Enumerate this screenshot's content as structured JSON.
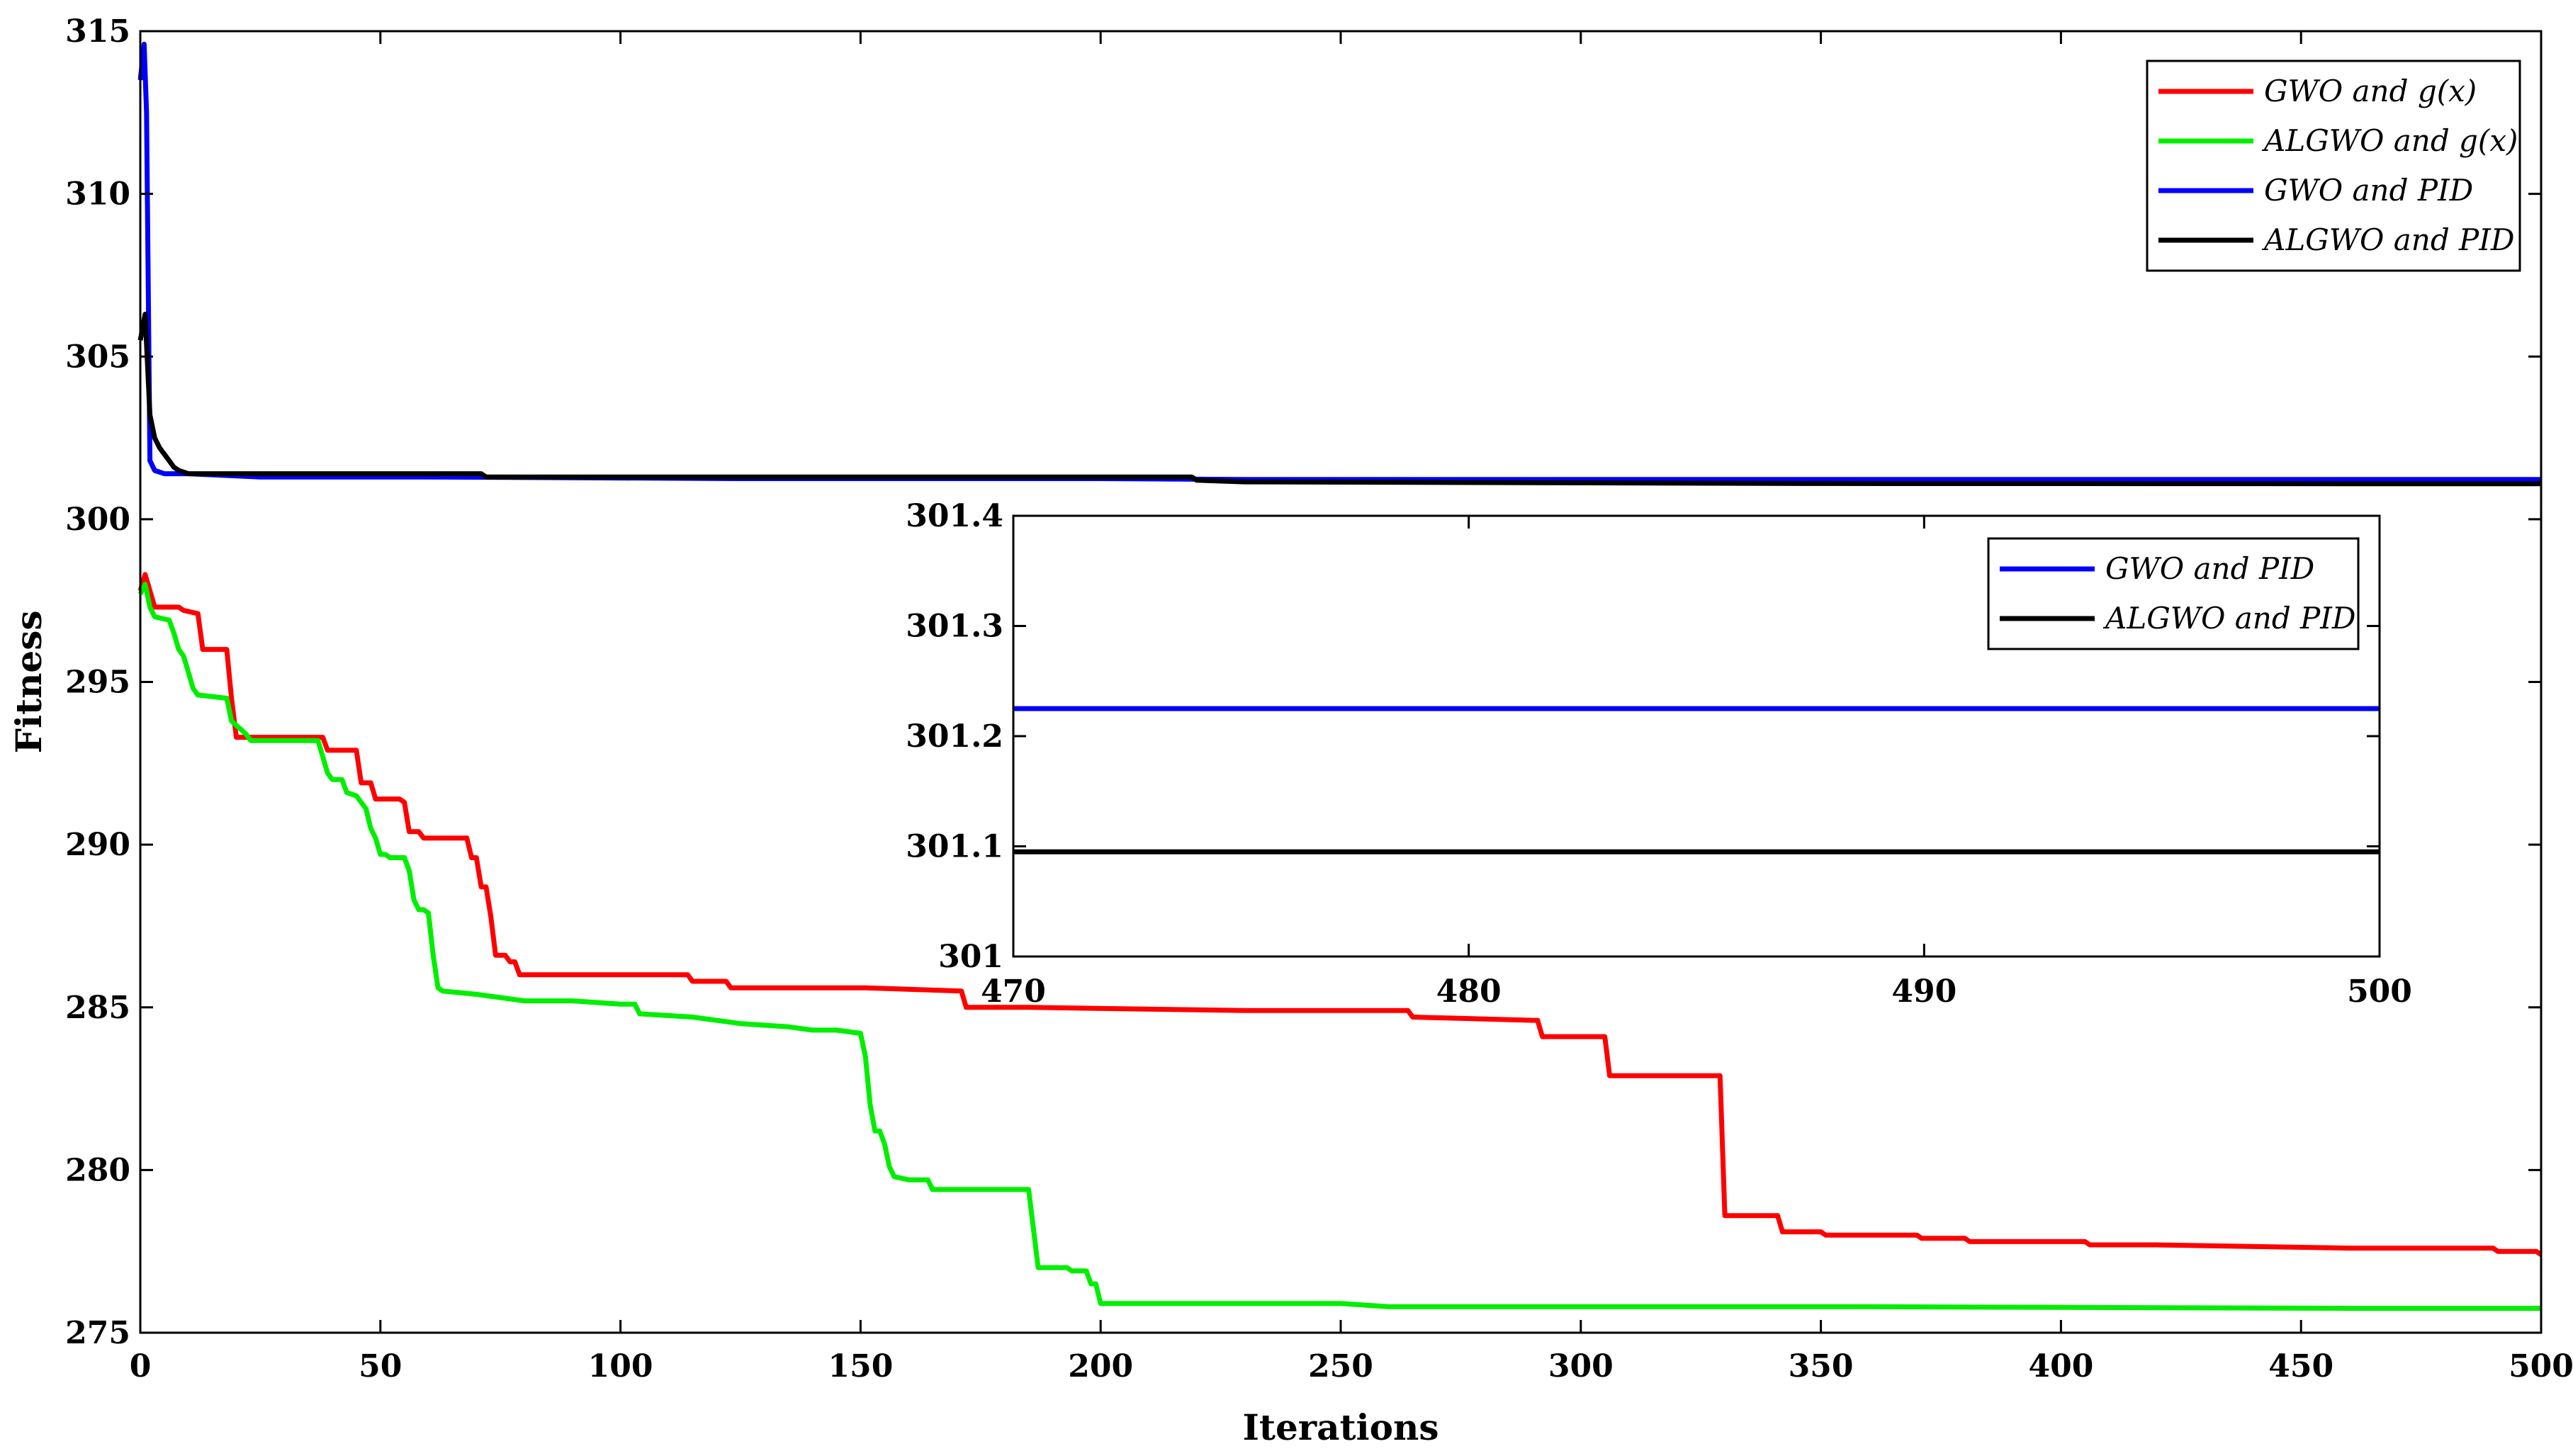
{
  "chart_data": [
    {
      "type": "line",
      "title": "",
      "xlabel": "Iterations",
      "ylabel": "Fitness",
      "xlim": [
        0,
        500
      ],
      "ylim": [
        275,
        315
      ],
      "xticks": [
        0,
        50,
        100,
        150,
        200,
        250,
        300,
        350,
        400,
        450,
        500
      ],
      "yticks": [
        275,
        280,
        285,
        290,
        295,
        300,
        305,
        310,
        315
      ],
      "grid": false,
      "legend_position": "top-right",
      "series": [
        {
          "name": "GWO and g(x)",
          "color": "#ff0000",
          "x": [
            0,
            1,
            2,
            3,
            8,
            9,
            12,
            13,
            18,
            19,
            20,
            38,
            39,
            45,
            46,
            48,
            49,
            54,
            55,
            56,
            58,
            59,
            60,
            61,
            62,
            68,
            69,
            70,
            71,
            72,
            73,
            74,
            75,
            76,
            77,
            78,
            79,
            80,
            90,
            114,
            115,
            122,
            123,
            145,
            150,
            151,
            171,
            172,
            185,
            230,
            250,
            264,
            265,
            290,
            291,
            292,
            293,
            305,
            306,
            310,
            311,
            329,
            330,
            341,
            342,
            350,
            351,
            370,
            371,
            380,
            381,
            405,
            406,
            420,
            460,
            480,
            490,
            491,
            498,
            499,
            500
          ],
          "y": [
            297.8,
            298.3,
            297.8,
            297.3,
            297.3,
            297.2,
            297.1,
            296.0,
            296.0,
            294.5,
            293.3,
            293.3,
            292.9,
            292.9,
            291.9,
            291.9,
            291.4,
            291.4,
            291.3,
            290.4,
            290.4,
            290.2,
            290.2,
            290.2,
            290.2,
            290.2,
            289.6,
            289.6,
            288.7,
            288.7,
            287.8,
            286.6,
            286.6,
            286.6,
            286.4,
            286.4,
            286.0,
            286.0,
            286.0,
            286.0,
            285.8,
            285.8,
            285.6,
            285.6,
            285.6,
            285.6,
            285.5,
            285.0,
            285.0,
            284.9,
            284.9,
            284.9,
            284.7,
            284.6,
            284.6,
            284.1,
            284.1,
            284.1,
            282.9,
            282.9,
            282.9,
            282.9,
            278.6,
            278.6,
            278.1,
            278.1,
            278.0,
            278.0,
            277.9,
            277.9,
            277.8,
            277.8,
            277.7,
            277.7,
            277.6,
            277.6,
            277.6,
            277.5,
            277.5,
            277.5,
            277.4
          ]
        },
        {
          "name": "ALGWO and g(x)",
          "color": "#00ee00",
          "x": [
            0,
            1,
            2,
            3,
            6,
            7,
            8,
            9,
            10,
            11,
            12,
            18,
            19,
            22,
            23,
            30,
            37,
            38,
            39,
            40,
            42,
            43,
            45,
            46,
            47,
            48,
            49,
            50,
            51,
            52,
            55,
            56,
            57,
            58,
            59,
            60,
            61,
            62,
            63,
            70,
            80,
            90,
            100,
            103,
            104,
            115,
            125,
            135,
            140,
            145,
            150,
            151,
            152,
            153,
            154,
            155,
            156,
            157,
            160,
            164,
            165,
            170,
            185,
            186,
            187,
            193,
            194,
            197,
            198,
            199,
            200,
            250,
            260,
            300,
            360,
            460,
            500
          ],
          "y": [
            297.7,
            298.0,
            297.3,
            297.0,
            296.9,
            296.5,
            296.0,
            295.8,
            295.3,
            294.8,
            294.6,
            294.5,
            293.8,
            293.4,
            293.2,
            293.2,
            293.2,
            292.7,
            292.2,
            292.0,
            292.0,
            291.6,
            291.5,
            291.3,
            291.1,
            290.5,
            290.2,
            289.7,
            289.7,
            289.6,
            289.6,
            289.2,
            288.3,
            288.0,
            288.0,
            287.9,
            286.6,
            285.6,
            285.5,
            285.4,
            285.2,
            285.2,
            285.1,
            285.1,
            284.8,
            284.7,
            284.5,
            284.4,
            284.3,
            284.3,
            284.2,
            283.5,
            282.0,
            281.2,
            281.2,
            280.8,
            280.1,
            279.8,
            279.7,
            279.7,
            279.4,
            279.4,
            279.4,
            278.2,
            277.0,
            277.0,
            276.9,
            276.9,
            276.5,
            276.5,
            275.9,
            275.9,
            275.8,
            275.8,
            275.8,
            275.75,
            275.75
          ]
        },
        {
          "name": "GWO and PID",
          "color": "#0000ff",
          "x": [
            0,
            0.8,
            1.3,
            2,
            3,
            5,
            6,
            10,
            25,
            60,
            125,
            200,
            230,
            231,
            500
          ],
          "y": [
            313.5,
            314.6,
            312.5,
            301.8,
            301.5,
            301.4,
            301.4,
            301.4,
            301.3,
            301.3,
            301.25,
            301.25,
            301.22,
            301.22,
            301.22
          ]
        },
        {
          "name": "ALGWO and PID",
          "color": "#000000",
          "x": [
            0,
            1,
            2,
            3,
            4,
            5,
            6,
            7,
            8,
            10,
            20,
            71,
            72,
            150,
            200,
            219,
            220,
            230,
            350,
            500
          ],
          "y": [
            305.5,
            306.3,
            303.2,
            302.5,
            302.2,
            302.0,
            301.8,
            301.6,
            301.5,
            301.4,
            301.4,
            301.4,
            301.3,
            301.3,
            301.3,
            301.3,
            301.2,
            301.15,
            301.1,
            301.09
          ]
        }
      ]
    },
    {
      "type": "line",
      "title": "",
      "xlabel": "",
      "ylabel": "",
      "xlim": [
        470,
        500
      ],
      "ylim": [
        301,
        301.4
      ],
      "xticks": [
        470,
        480,
        490,
        500
      ],
      "yticks": [
        301,
        301.1,
        301.2,
        301.3,
        301.4
      ],
      "grid": false,
      "legend_position": "top-right",
      "series": [
        {
          "name": "GWO and PID",
          "color": "#0000ff",
          "x": [
            470,
            500
          ],
          "y": [
            301.225,
            301.225
          ]
        },
        {
          "name": "ALGWO and PID",
          "color": "#000000",
          "x": [
            470,
            500
          ],
          "y": [
            301.095,
            301.095
          ]
        }
      ]
    }
  ]
}
